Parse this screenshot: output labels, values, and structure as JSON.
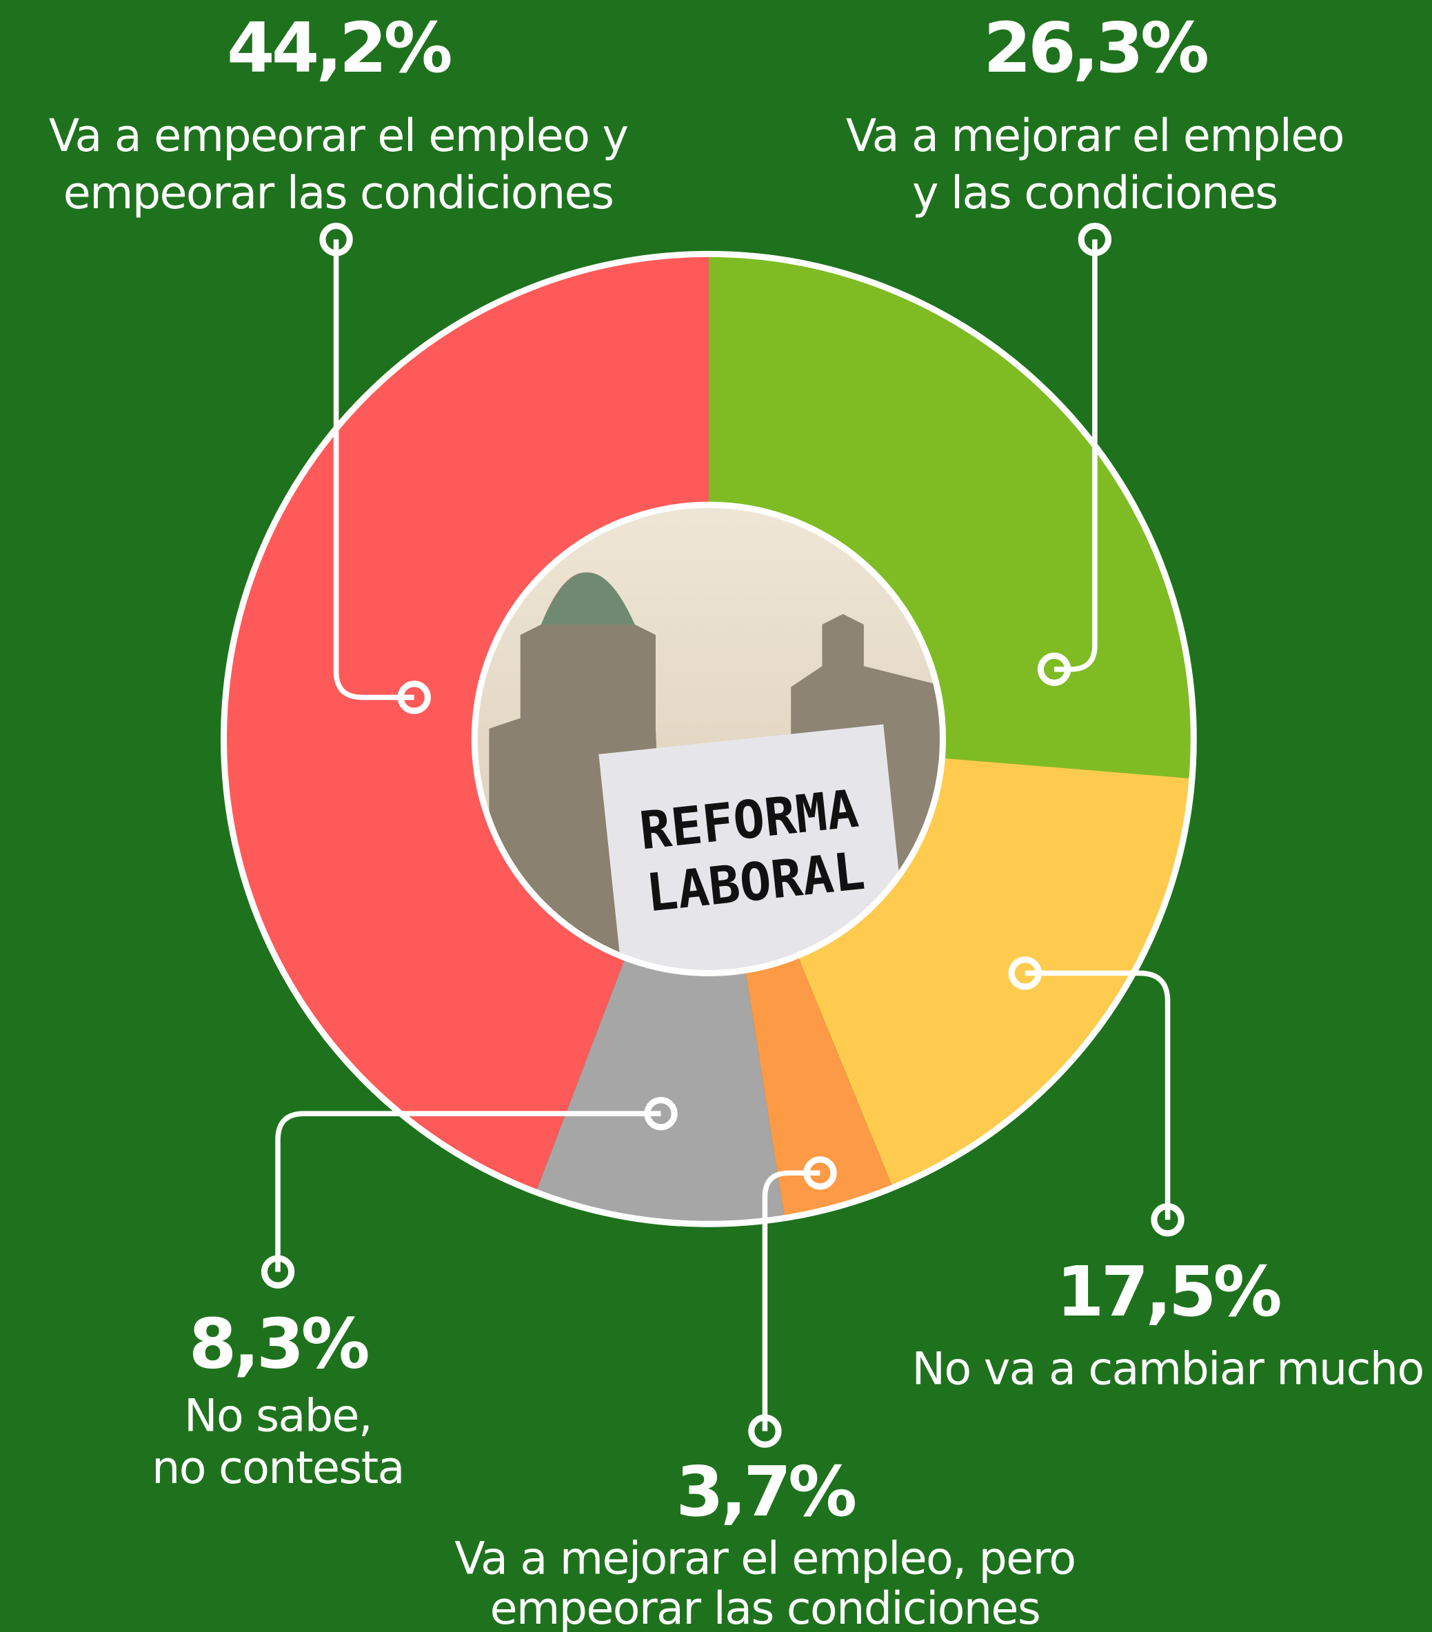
{
  "chart_data": {
    "type": "pie",
    "donut": true,
    "categories": [
      [
        "Va a mejorar el empleo",
        "y las condiciones"
      ],
      [
        "No va a cambiar mucho"
      ],
      [
        "Va a mejorar el empleo, pero",
        "empeorar las condiciones"
      ],
      [
        "No sabe,",
        "no contesta"
      ],
      [
        "Va a empeorar el empleo y",
        "empeorar las condiciones"
      ]
    ],
    "values": [
      26.3,
      17.5,
      3.7,
      8.3,
      44.2
    ],
    "value_labels": [
      "26,3%",
      "17,5%",
      "3,7%",
      "8,3%",
      "44,2%"
    ],
    "colors": [
      "#7fbc24",
      "#fecb4e",
      "#fd9a45",
      "#a6a6a6",
      "#fe5a59"
    ],
    "center_text": [
      "REFORMA",
      "LABORAL"
    ]
  }
}
